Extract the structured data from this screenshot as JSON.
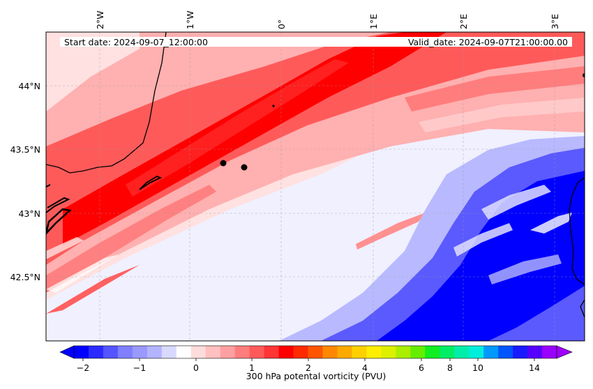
{
  "header": {
    "start_date": "Start date: 2024-09-07_12:00:00",
    "valid_date": "Valid_date: 2024-09-07T21:00:00.00"
  },
  "map": {
    "lon_labels": [
      "2°W",
      "1°W",
      "0°",
      "1°E",
      "2°E",
      "3°E"
    ],
    "lat_labels": [
      "44°N",
      "43.5°N",
      "43°N",
      "42.5°N"
    ],
    "gridlines": "dashed",
    "colors": {
      "strong_red": "#ff0000",
      "red": "#ff5a5a",
      "pink": "#ffb0b0",
      "light_pink": "#ffe1e1",
      "very_light": "#f0f0ff",
      "light_blue": "#b9b9ff",
      "blue": "#5a5aff",
      "deep_blue": "#0000ff"
    }
  },
  "colorbar": {
    "label": "300 hPa potental vorticity (PVU)",
    "tick_labels": [
      "−2",
      "−1",
      "0",
      "1",
      "2",
      "4",
      "6",
      "8",
      "10",
      "14"
    ],
    "colors": [
      "#0000ff",
      "#2a2aff",
      "#5555ff",
      "#7f7fff",
      "#9999ff",
      "#b3b3ff",
      "#d9d9ff",
      "#ffffff",
      "#ffdcdc",
      "#ffc0c0",
      "#ffa0a0",
      "#ff7d7d",
      "#ff5a5a",
      "#ff3535",
      "#ff0000",
      "#ff2a00",
      "#ff5500",
      "#ff8800",
      "#ffaa00",
      "#ffd000",
      "#ffee00",
      "#ddf000",
      "#aaee00",
      "#66ee00",
      "#11ee22",
      "#00ee66",
      "#00eeaa",
      "#00eedd",
      "#0099ff",
      "#0055ff",
      "#1a1aff",
      "#5500ff",
      "#9900ff"
    ],
    "extend_min_color": "#0000ff",
    "extend_max_color": "#a000ff"
  }
}
